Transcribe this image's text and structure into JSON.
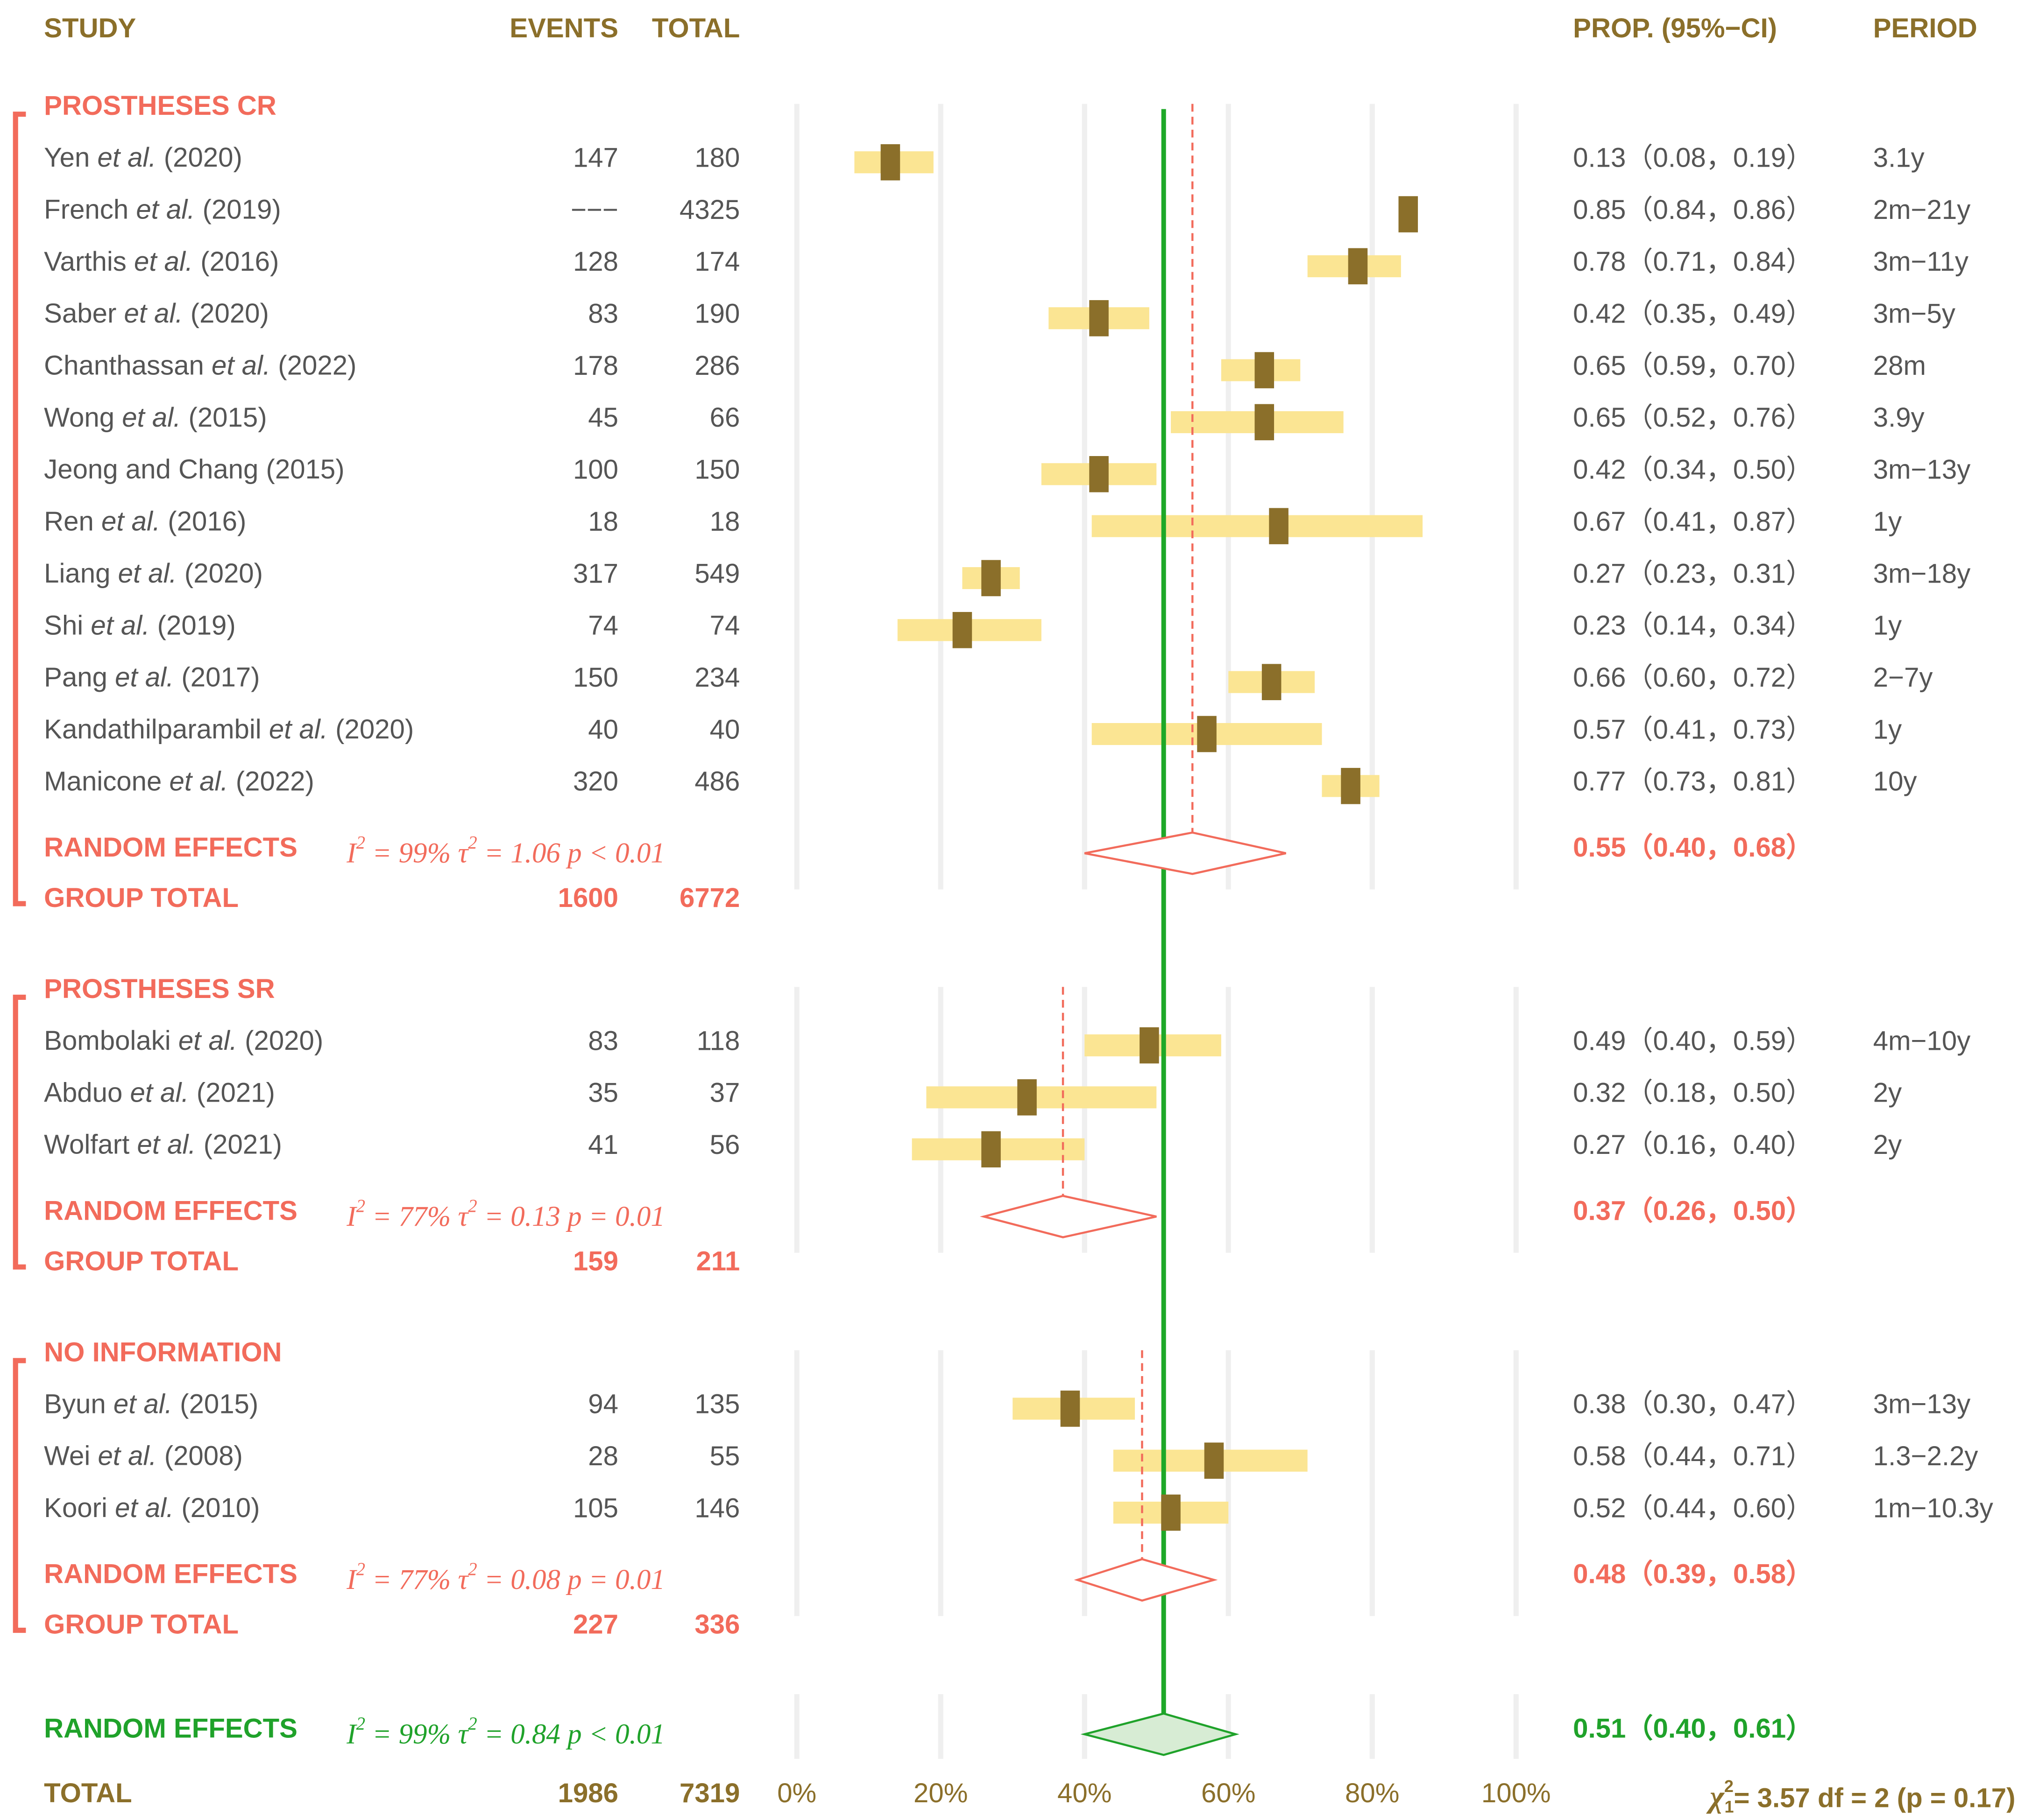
{
  "colors": {
    "header": "#8b6f2a",
    "group": "#f26b5b",
    "overall": "#1fa22a",
    "study_text": "#555555",
    "ci_band": "#fbe593",
    "box": "#8b6f2a",
    "grid": "#efefef",
    "green_line": "#1ea828"
  },
  "headers": {
    "study": "STUDY",
    "events": "EVENTS",
    "total": "TOTAL",
    "prop": "PROP. (95%−CI)",
    "period": "PERIOD"
  },
  "chart_data": {
    "type": "forest",
    "xlim": [
      0,
      1
    ],
    "x_ticks": [
      0,
      0.2,
      0.4,
      0.6,
      0.8,
      1.0
    ],
    "x_tick_labels": [
      "0%",
      "20%",
      "40%",
      "60%",
      "80%",
      "100%"
    ],
    "grid": true,
    "overall_line": 0.51,
    "groups": [
      {
        "name": "PROSTHESES CR",
        "studies": [
          {
            "author": "Yen",
            "etal": true,
            "year": "(2020)",
            "events": "147",
            "total": "180",
            "prop": 0.13,
            "lo": 0.08,
            "hi": 0.19,
            "ci_text": "0.13（0.08，0.19）",
            "period": "3.1y"
          },
          {
            "author": "French",
            "etal": true,
            "year": "(2019)",
            "events": "−−−",
            "total": "4325",
            "prop": 0.85,
            "lo": 0.84,
            "hi": 0.86,
            "ci_text": "0.85（0.84，0.86）",
            "period": "2m−21y"
          },
          {
            "author": "Varthis",
            "etal": true,
            "year": "(2016)",
            "events": "128",
            "total": "174",
            "prop": 0.78,
            "lo": 0.71,
            "hi": 0.84,
            "ci_text": "0.78（0.71，0.84）",
            "period": "3m−11y"
          },
          {
            "author": "Saber",
            "etal": true,
            "year": "(2020)",
            "events": "83",
            "total": "190",
            "prop": 0.42,
            "lo": 0.35,
            "hi": 0.49,
            "ci_text": "0.42（0.35，0.49）",
            "period": "3m−5y"
          },
          {
            "author": "Chanthassan",
            "etal": true,
            "year": "(2022)",
            "events": "178",
            "total": "286",
            "prop": 0.65,
            "lo": 0.59,
            "hi": 0.7,
            "ci_text": "0.65（0.59，0.70）",
            "period": "28m"
          },
          {
            "author": "Wong",
            "etal": true,
            "year": "(2015)",
            "events": "45",
            "total": "66",
            "prop": 0.65,
            "lo": 0.52,
            "hi": 0.76,
            "ci_text": "0.65（0.52，0.76）",
            "period": "3.9y"
          },
          {
            "author": "Jeong and Chang",
            "etal": false,
            "year": "(2015)",
            "events": "100",
            "total": "150",
            "prop": 0.42,
            "lo": 0.34,
            "hi": 0.5,
            "ci_text": "0.42（0.34，0.50）",
            "period": "3m−13y"
          },
          {
            "author": "Ren",
            "etal": true,
            "year": "(2016)",
            "events": "18",
            "total": "18",
            "prop": 0.67,
            "lo": 0.41,
            "hi": 0.87,
            "ci_text": "0.67（0.41，0.87）",
            "period": "1y"
          },
          {
            "author": "Liang",
            "etal": true,
            "year": "(2020)",
            "events": "317",
            "total": "549",
            "prop": 0.27,
            "lo": 0.23,
            "hi": 0.31,
            "ci_text": "0.27（0.23，0.31）",
            "period": "3m−18y"
          },
          {
            "author": "Shi",
            "etal": true,
            "year": "(2019)",
            "events": "74",
            "total": "74",
            "prop": 0.23,
            "lo": 0.14,
            "hi": 0.34,
            "ci_text": "0.23（0.14，0.34）",
            "period": "1y"
          },
          {
            "author": "Pang",
            "etal": true,
            "year": "(2017)",
            "events": "150",
            "total": "234",
            "prop": 0.66,
            "lo": 0.6,
            "hi": 0.72,
            "ci_text": "0.66（0.60，0.72）",
            "period": "2−7y"
          },
          {
            "author": "Kandathilparambil",
            "etal": true,
            "year": "(2020)",
            "events": "40",
            "total": "40",
            "prop": 0.57,
            "lo": 0.41,
            "hi": 0.73,
            "ci_text": "0.57（0.41，0.73）",
            "period": "1y"
          },
          {
            "author": "Manicone",
            "etal": true,
            "year": "(2022)",
            "events": "320",
            "total": "486",
            "prop": 0.77,
            "lo": 0.73,
            "hi": 0.81,
            "ci_text": "0.77（0.73，0.81）",
            "period": "10y"
          }
        ],
        "random_effects": {
          "label": "RANDOM EFFECTS",
          "i2": "99%",
          "tau2": "1.06",
          "p_op": "<",
          "p": "0.01",
          "prop": 0.55,
          "lo": 0.4,
          "hi": 0.68,
          "ci_text": "0.55（0.40，0.68）"
        },
        "group_total": {
          "label": "GROUP TOTAL",
          "events": "1600",
          "total": "6772"
        }
      },
      {
        "name": "PROSTHESES SR",
        "studies": [
          {
            "author": "Bombolaki",
            "etal": true,
            "year": "(2020)",
            "events": "83",
            "total": "118",
            "prop": 0.49,
            "lo": 0.4,
            "hi": 0.59,
            "ci_text": "0.49（0.40，0.59）",
            "period": "4m−10y"
          },
          {
            "author": "Abduo",
            "etal": true,
            "year": "(2021)",
            "events": "35",
            "total": "37",
            "prop": 0.32,
            "lo": 0.18,
            "hi": 0.5,
            "ci_text": "0.32（0.18，0.50）",
            "period": "2y"
          },
          {
            "author": "Wolfart",
            "etal": true,
            "year": "(2021)",
            "events": "41",
            "total": "56",
            "prop": 0.27,
            "lo": 0.16,
            "hi": 0.4,
            "ci_text": "0.27（0.16，0.40）",
            "period": "2y"
          }
        ],
        "random_effects": {
          "label": "RANDOM EFFECTS",
          "i2": "77%",
          "tau2": "0.13",
          "p_op": "=",
          "p": "0.01",
          "prop": 0.37,
          "lo": 0.26,
          "hi": 0.5,
          "ci_text": "0.37（0.26，0.50）"
        },
        "group_total": {
          "label": "GROUP TOTAL",
          "events": "159",
          "total": "211"
        }
      },
      {
        "name": "NO INFORMATION",
        "studies": [
          {
            "author": "Byun",
            "etal": true,
            "year": "(2015)",
            "events": "94",
            "total": "135",
            "prop": 0.38,
            "lo": 0.3,
            "hi": 0.47,
            "ci_text": "0.38（0.30，0.47）",
            "period": "3m−13y"
          },
          {
            "author": "Wei",
            "etal": true,
            "year": "(2008)",
            "events": "28",
            "total": "55",
            "prop": 0.58,
            "lo": 0.44,
            "hi": 0.71,
            "ci_text": "0.58（0.44，0.71）",
            "period": "1.3−2.2y"
          },
          {
            "author": "Koori",
            "etal": true,
            "year": "(2010)",
            "events": "105",
            "total": "146",
            "prop": 0.52,
            "lo": 0.44,
            "hi": 0.6,
            "ci_text": "0.52（0.44，0.60）",
            "period": "1m−10.3y"
          }
        ],
        "random_effects": {
          "label": "RANDOM EFFECTS",
          "i2": "77%",
          "tau2": "0.08",
          "p_op": "=",
          "p": "0.01",
          "prop": 0.48,
          "lo": 0.39,
          "hi": 0.58,
          "ci_text": "0.48（0.39，0.58）"
        },
        "group_total": {
          "label": "GROUP TOTAL",
          "events": "227",
          "total": "336"
        }
      }
    ],
    "overall": {
      "random_effects": {
        "label": "RANDOM EFFECTS",
        "i2": "99%",
        "tau2": "0.84",
        "p_op": "<",
        "p": "0.01",
        "prop": 0.51,
        "lo": 0.4,
        "hi": 0.61,
        "ci_text": "0.51（0.40，0.61）"
      },
      "total": {
        "label": "TOTAL",
        "events": "1986",
        "total": "7319"
      },
      "test": {
        "chi_label": "χ",
        "chi_sub": "1",
        "chi_sup": "2",
        "chi_value": "= 3.57",
        "df_text": "df = 2",
        "p_text": "(p = 0.17)"
      }
    }
  }
}
